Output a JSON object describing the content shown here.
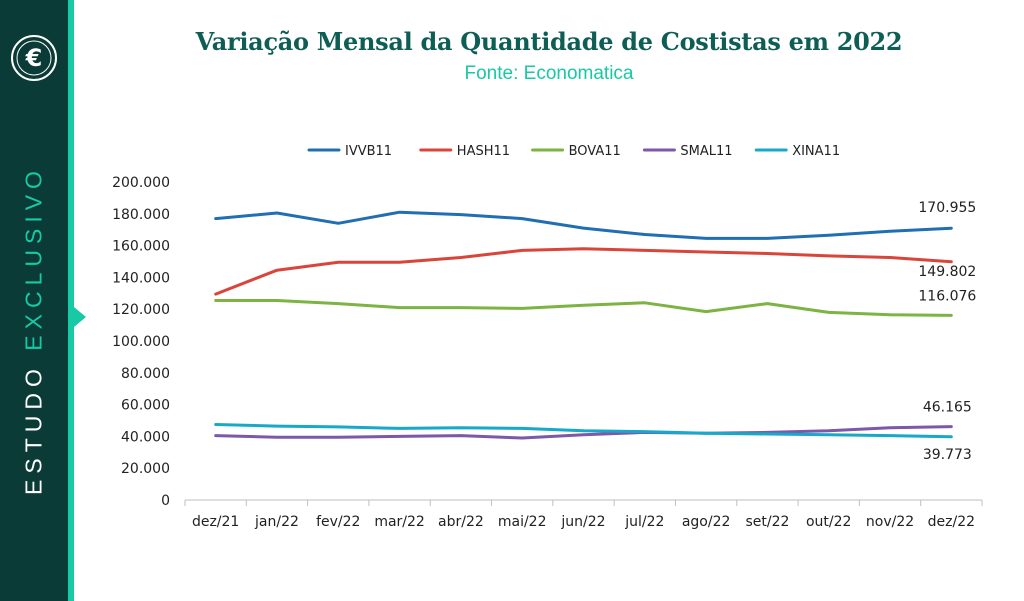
{
  "sidebar": {
    "logo_icon": "euro-coin-logo",
    "label_part1": "ESTUDO",
    "label_part2": "EXCLUSIVO",
    "accent": "#17c9a4",
    "background": "#0b3b36"
  },
  "chart_data": {
    "type": "line",
    "title": "Variação Mensal da Quantidade de Costistas em 2022",
    "subtitle": "Fonte: Economatica",
    "categories": [
      "dez/21",
      "jan/22",
      "fev/22",
      "mar/22",
      "abr/22",
      "mai/22",
      "jun/22",
      "jul/22",
      "ago/22",
      "set/22",
      "out/22",
      "nov/22",
      "dez/22"
    ],
    "yticks": [
      "0",
      "20.000",
      "40.000",
      "60.000",
      "80.000",
      "100.000",
      "120.000",
      "140.000",
      "160.000",
      "180.000",
      "200.000"
    ],
    "ylim": [
      0,
      200000
    ],
    "grid": false,
    "legend_position": "top",
    "series": [
      {
        "name": "IVVB11",
        "color": "#1f6fb2",
        "values": [
          177000,
          180500,
          174000,
          181000,
          179500,
          177000,
          171000,
          167000,
          164500,
          164500,
          166500,
          169000,
          170955
        ],
        "end_label": "170.955"
      },
      {
        "name": "HASH11",
        "color": "#d9453b",
        "values": [
          129500,
          144500,
          149500,
          149500,
          152500,
          157000,
          158000,
          157000,
          156000,
          155000,
          153500,
          152500,
          149802
        ],
        "end_label": "149.802"
      },
      {
        "name": "BOVA11",
        "color": "#7cb342",
        "values": [
          125500,
          125500,
          123500,
          121000,
          121000,
          120500,
          122500,
          124000,
          118500,
          123500,
          118000,
          116500,
          116076
        ],
        "end_label": "116.076"
      },
      {
        "name": "SMAL11",
        "color": "#7e57a8",
        "values": [
          40500,
          39500,
          39500,
          40000,
          40500,
          39000,
          41000,
          42500,
          42000,
          42500,
          43500,
          45500,
          46165
        ],
        "end_label": "46.165"
      },
      {
        "name": "XINA11",
        "color": "#17a9c9",
        "values": [
          47500,
          46500,
          46000,
          45000,
          45500,
          45000,
          43500,
          43000,
          42000,
          41500,
          41000,
          40500,
          39773
        ],
        "end_label": "39.773"
      }
    ]
  }
}
